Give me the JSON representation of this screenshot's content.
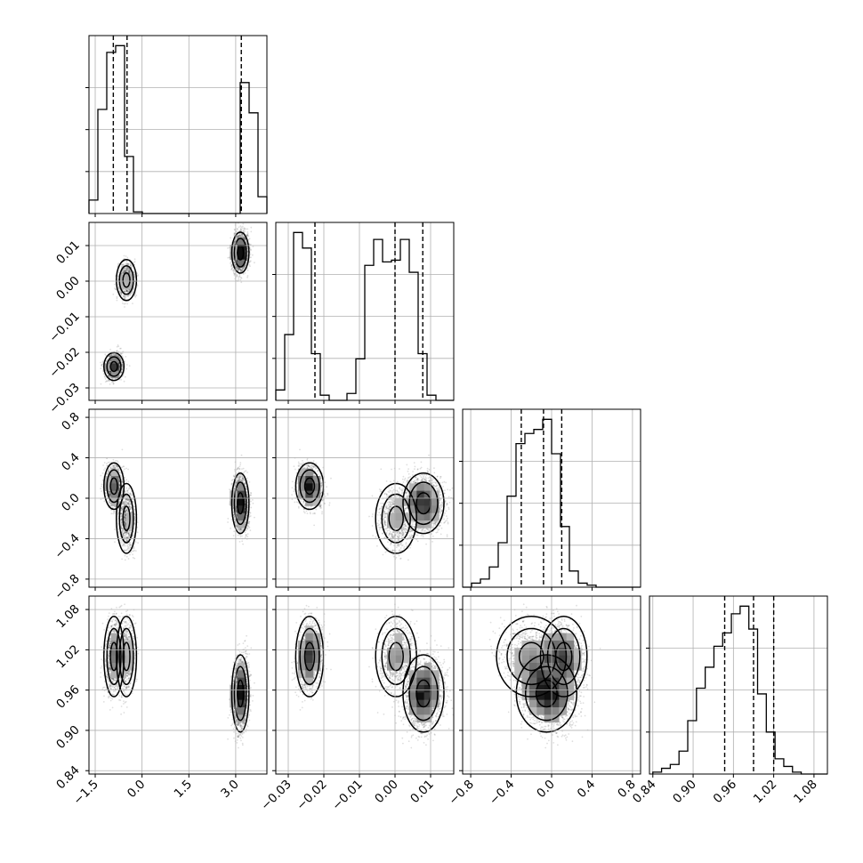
{
  "chart_data": {
    "type": "corner",
    "style": {
      "ink": "#000000",
      "grid": "#b0b0b0",
      "axes_bg": "#ffffff",
      "scatter": "#000000"
    },
    "parameters": [
      {
        "range": [
          -1.7,
          4.0
        ],
        "ticks": [
          -1.5,
          0.0,
          1.5,
          3.0
        ],
        "tick_labels": [
          "−1.5",
          "0.0",
          "1.5",
          "3.0"
        ]
      },
      {
        "range": [
          -0.0335,
          0.0165
        ],
        "ticks": [
          -0.03,
          -0.02,
          -0.01,
          0.0,
          0.01
        ],
        "tick_labels": [
          "−0.03",
          "−0.02",
          "−0.01",
          "0.00",
          "0.01"
        ]
      },
      {
        "range": [
          -0.88,
          0.88
        ],
        "ticks": [
          -0.8,
          -0.4,
          0.0,
          0.4,
          0.8
        ],
        "tick_labels": [
          "−0.8",
          "−0.4",
          "0.0",
          "0.4",
          "0.8"
        ]
      },
      {
        "range": [
          0.835,
          1.1
        ],
        "ticks": [
          0.84,
          0.9,
          0.96,
          1.02,
          1.08
        ],
        "tick_labels": [
          "0.84",
          "0.90",
          "0.96",
          "1.02",
          "1.08"
        ]
      }
    ],
    "diagonal": [
      {
        "bin_edges": [
          -1.7,
          -1.415,
          -1.13,
          -0.845,
          -0.56,
          -0.275,
          0.01,
          0.295,
          0.58,
          0.865,
          1.15,
          1.435,
          1.72,
          2.005,
          2.29,
          2.575,
          2.86,
          3.145,
          3.43,
          3.715,
          4.0
        ],
        "counts": [
          0.08,
          0.62,
          0.96,
          1.0,
          0.34,
          0.01,
          0.0,
          0.0,
          0.0,
          0.0,
          0.0,
          0.0,
          0.0,
          0.0,
          0.0,
          0.0,
          0.0,
          0.78,
          0.6,
          0.1
        ],
        "quantiles": [
          -0.92,
          -0.48,
          3.18
        ]
      },
      {
        "bin_edges": [
          -0.0335,
          -0.031,
          -0.0285,
          -0.026,
          -0.0235,
          -0.021,
          -0.0185,
          -0.016,
          -0.0135,
          -0.011,
          -0.0085,
          -0.006,
          -0.0035,
          -0.001,
          0.0015,
          0.004,
          0.0065,
          0.009,
          0.0115,
          0.014,
          0.0165
        ],
        "counts": [
          0.06,
          0.38,
          0.97,
          0.88,
          0.27,
          0.03,
          0.0,
          0.0,
          0.04,
          0.24,
          0.78,
          0.93,
          0.8,
          0.81,
          0.93,
          0.74,
          0.27,
          0.03,
          0.0,
          0.0
        ],
        "quantiles": [
          -0.0225,
          0.0,
          0.0078
        ]
      },
      {
        "bin_edges": [
          -0.88,
          -0.792,
          -0.704,
          -0.616,
          -0.528,
          -0.44,
          -0.352,
          -0.264,
          -0.176,
          -0.088,
          0.0,
          0.088,
          0.176,
          0.264,
          0.352,
          0.44,
          0.528,
          0.616,
          0.704,
          0.792,
          0.88
        ],
        "counts": [
          0.0,
          0.02,
          0.04,
          0.1,
          0.22,
          0.45,
          0.71,
          0.76,
          0.78,
          0.83,
          0.66,
          0.3,
          0.08,
          0.02,
          0.01,
          0.0,
          0.0,
          0.0,
          0.0,
          0.0
        ],
        "quantiles": [
          -0.3,
          -0.08,
          0.1
        ]
      },
      {
        "bin_edges": [
          0.84,
          0.853,
          0.866,
          0.879,
          0.892,
          0.905,
          0.918,
          0.931,
          0.944,
          0.957,
          0.97,
          0.983,
          0.996,
          1.009,
          1.022,
          1.035,
          1.048,
          1.061,
          1.074,
          1.087,
          1.1
        ],
        "counts": [
          0.01,
          0.03,
          0.05,
          0.12,
          0.28,
          0.45,
          0.56,
          0.67,
          0.74,
          0.84,
          0.88,
          0.76,
          0.42,
          0.22,
          0.08,
          0.04,
          0.01,
          0.0,
          0.0,
          0.0
        ],
        "quantiles": [
          0.947,
          0.99,
          1.02
        ]
      }
    ],
    "clusters": [
      {
        "weight": 0.3,
        "mean": [
          -0.9,
          -0.024,
          0.12,
          1.01
        ],
        "sd": [
          0.14,
          0.0017,
          0.1,
          0.026
        ]
      },
      {
        "weight": 0.2,
        "mean": [
          -0.5,
          0.0003,
          -0.2,
          1.01
        ],
        "sd": [
          0.14,
          0.0025,
          0.15,
          0.026
        ]
      },
      {
        "weight": 0.5,
        "mean": [
          3.15,
          0.008,
          -0.05,
          0.955
        ],
        "sd": [
          0.12,
          0.0025,
          0.13,
          0.025
        ]
      }
    ]
  }
}
